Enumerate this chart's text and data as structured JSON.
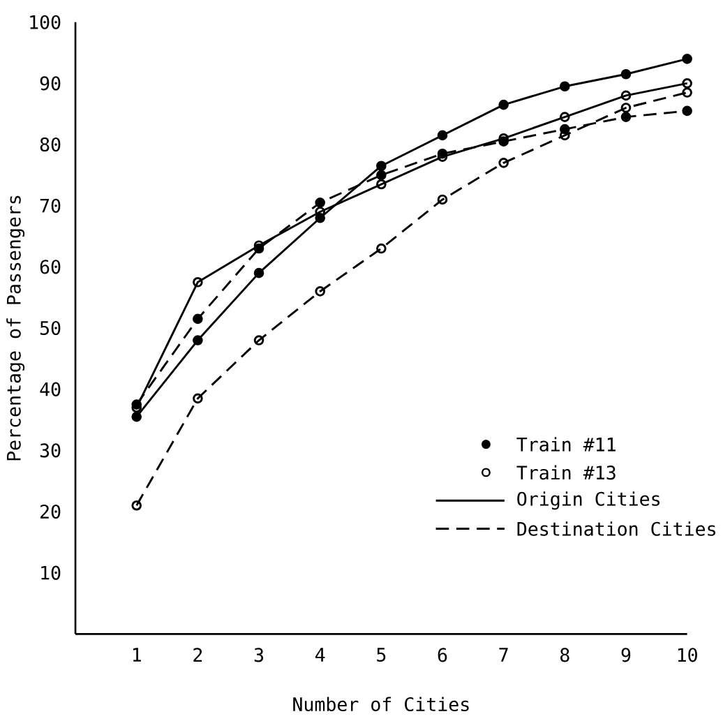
{
  "chart_data": {
    "type": "line",
    "xlabel": "Number of Cities",
    "ylabel": "Percentage of Passengers",
    "x": [
      1,
      2,
      3,
      4,
      5,
      6,
      7,
      8,
      9,
      10
    ],
    "series": [
      {
        "color": "#000000",
        "marker": "circle",
        "line_style": "solid",
        "values": [
          35.5,
          48,
          59,
          68,
          76.5,
          81.5,
          86.5,
          89.5,
          91.5,
          94
        ]
      },
      {
        "color": "#000000",
        "marker": "circle",
        "line_style": "dashed",
        "values": [
          37.5,
          51.5,
          63,
          70.5,
          75,
          78.5,
          80.5,
          82.5,
          84.5,
          85.5
        ]
      },
      {
        "color": "#000000",
        "marker": "open circle",
        "line_style": "solid",
        "values": [
          37,
          57.5,
          63.5,
          69,
          73.5,
          78,
          81,
          84.5,
          88,
          90
        ]
      },
      {
        "color": "#000000",
        "marker": "open circle",
        "line_style": "dashed",
        "values": [
          21,
          38.5,
          48,
          56,
          63,
          71,
          77,
          81.5,
          86,
          88.5
        ]
      }
    ],
    "annotations": [
      "Train #11",
      "Train #13",
      "Origin Cities",
      "Destination Cities"
    ],
    "xlim": [
      0,
      10
    ],
    "ylim": [
      0,
      100
    ],
    "xticks": [
      1,
      2,
      3,
      4,
      5,
      6,
      7,
      8,
      9,
      10
    ],
    "yticks": [
      10,
      20,
      30,
      40,
      50,
      60,
      70,
      80,
      90,
      100
    ],
    "grid": false
  }
}
